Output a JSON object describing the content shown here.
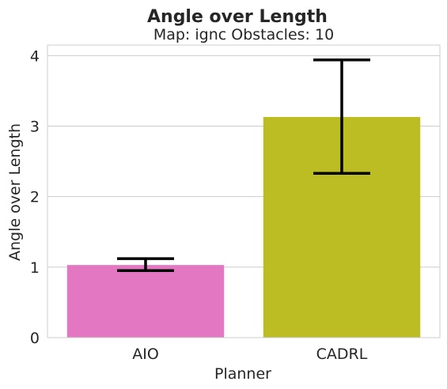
{
  "chart_data": {
    "type": "bar",
    "title": "Angle over Length",
    "subtitle": "Map: ignc Obstacles: 10",
    "xlabel": "Planner",
    "ylabel": "Angle over Length",
    "categories": [
      "AIO",
      "CADRL"
    ],
    "values": [
      1.03,
      3.13
    ],
    "error_low": [
      0.95,
      2.33
    ],
    "error_high": [
      1.12,
      3.94
    ],
    "colors": [
      "#e377c2",
      "#bcbd22"
    ],
    "ylim": [
      0,
      4.15
    ],
    "yticks": [
      0,
      1,
      2,
      3,
      4
    ],
    "grid": true,
    "legend": "none"
  }
}
